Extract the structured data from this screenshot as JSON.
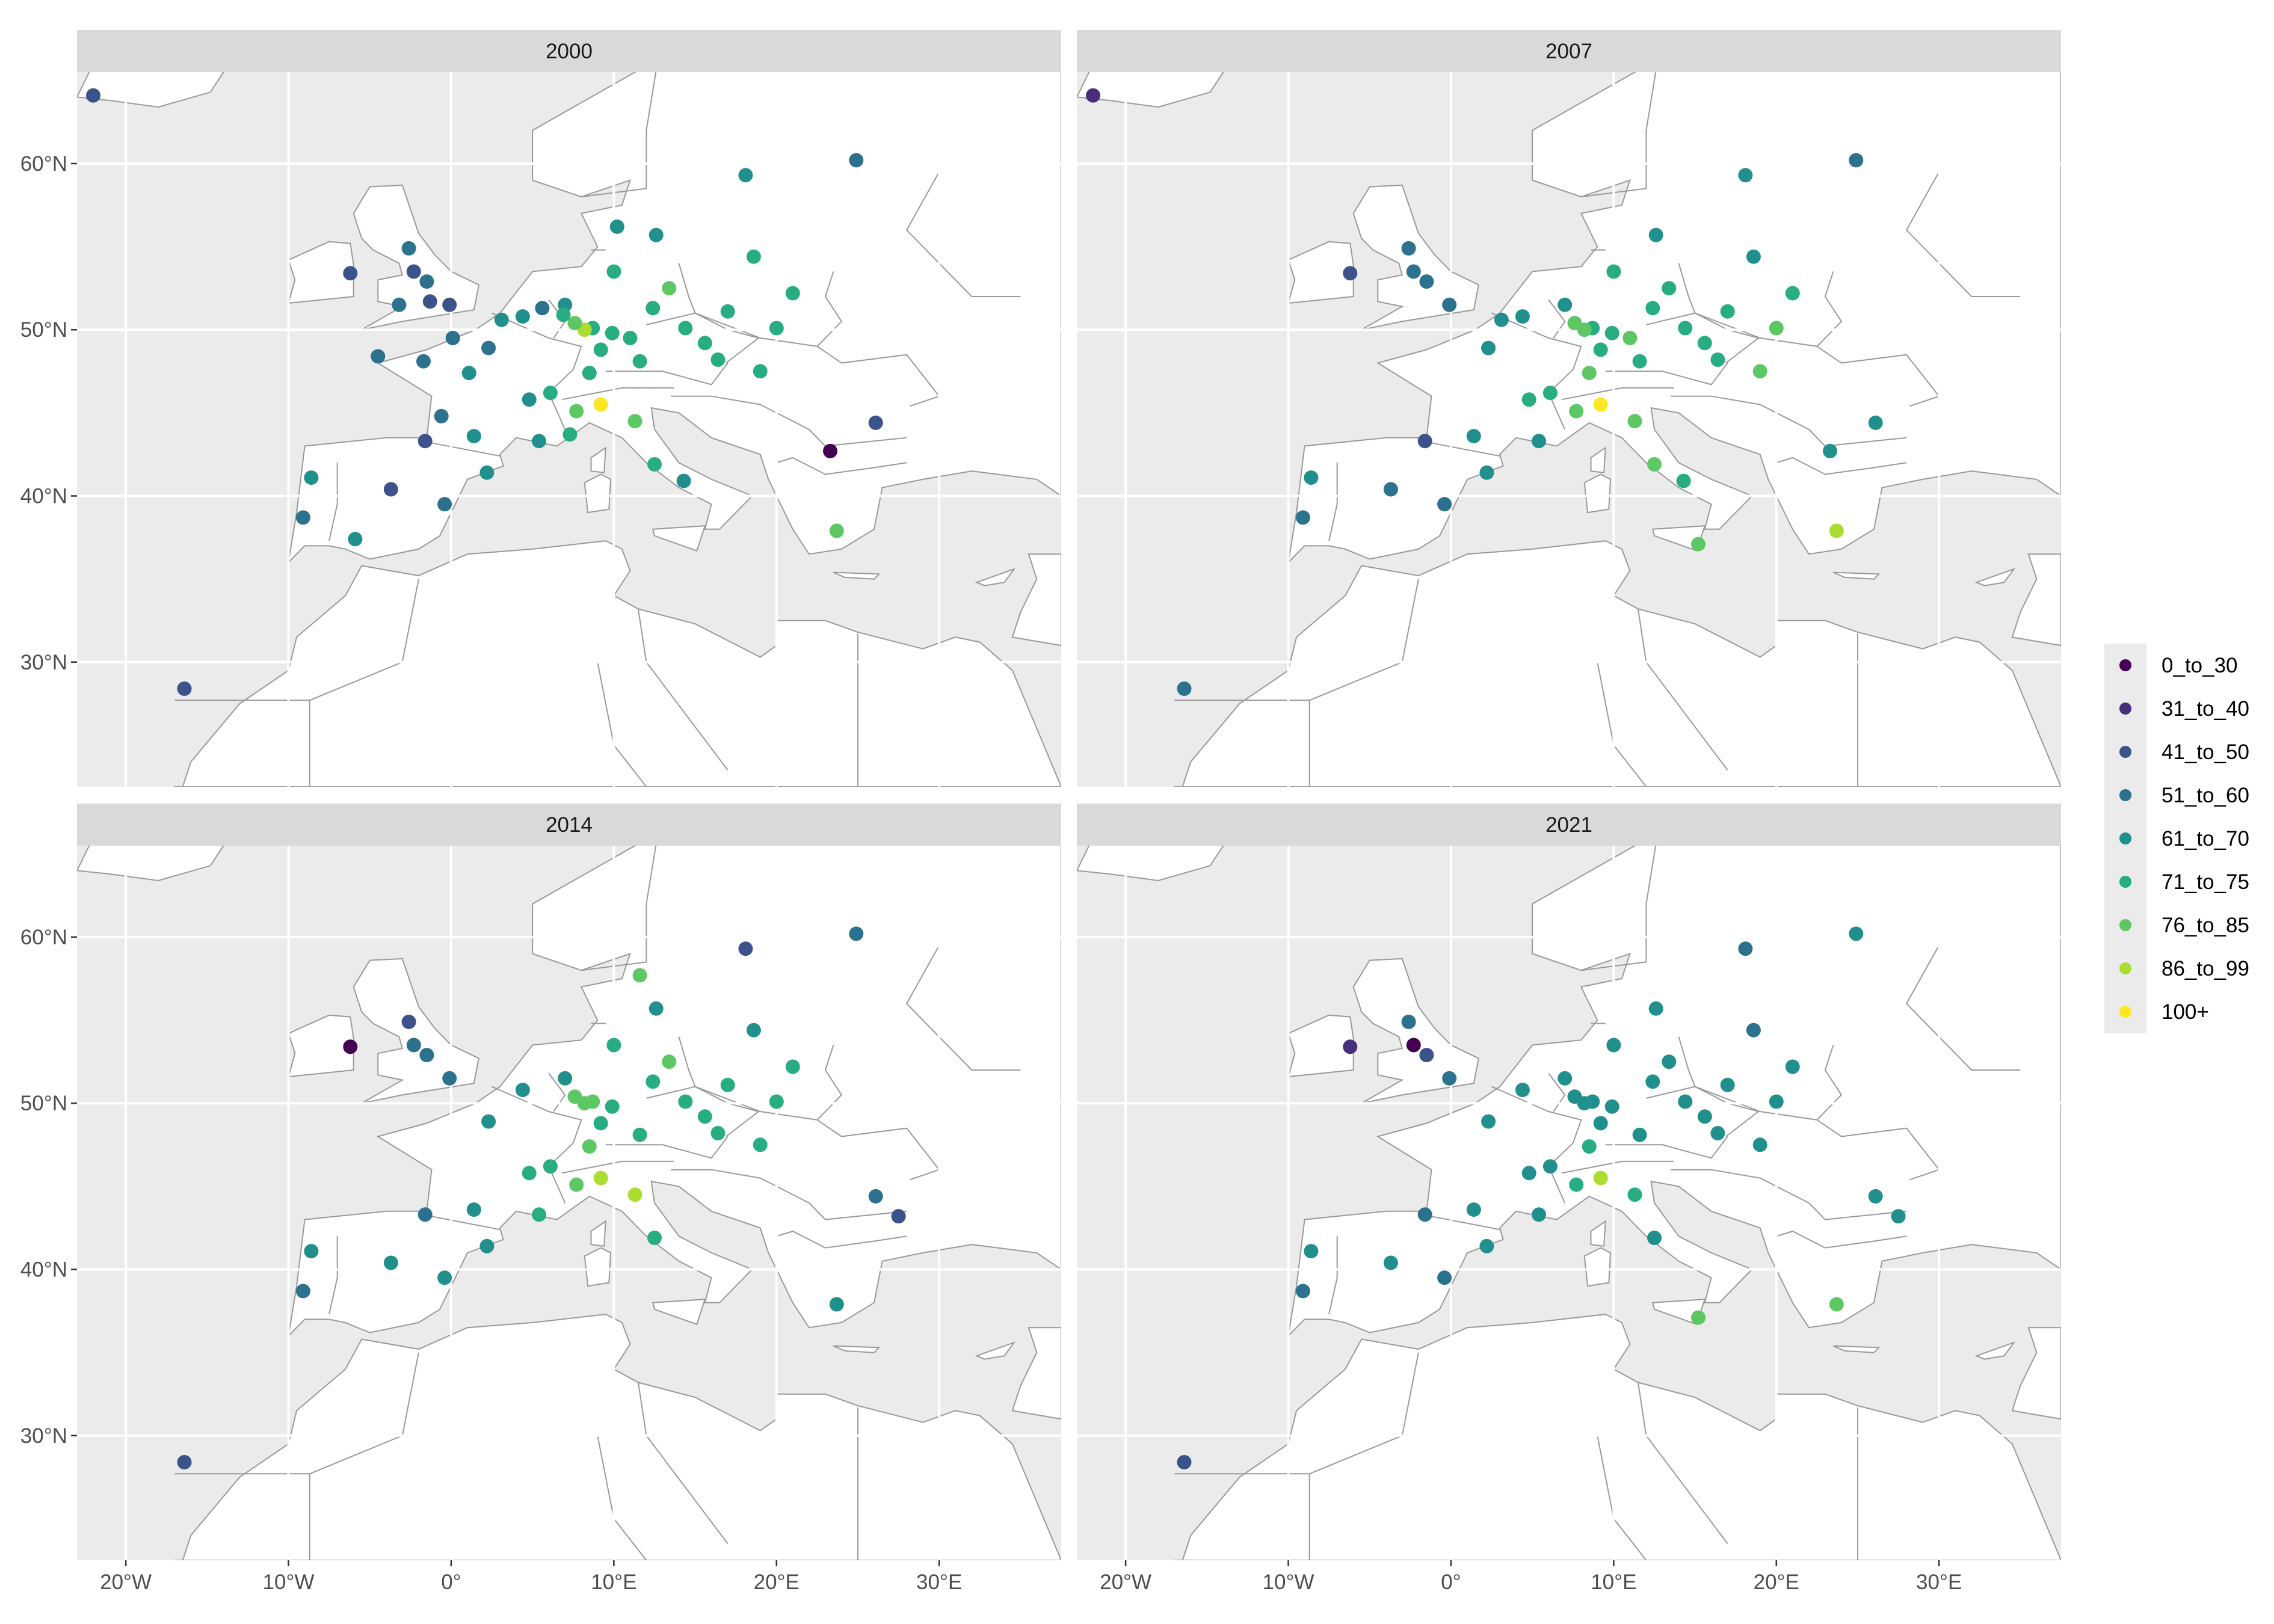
{
  "chart_data": {
    "type": "scatter",
    "xlim": [
      -23,
      37.5
    ],
    "ylim": [
      22.5,
      65.5
    ],
    "x_ticks": [
      {
        "value": -20,
        "label": "20°W"
      },
      {
        "value": -10,
        "label": "10°W"
      },
      {
        "value": 0,
        "label": "0°"
      },
      {
        "value": 10,
        "label": "10°E"
      },
      {
        "value": 20,
        "label": "20°E"
      },
      {
        "value": 30,
        "label": "30°E"
      }
    ],
    "y_ticks": [
      {
        "value": 30,
        "label": "30°N"
      },
      {
        "value": 40,
        "label": "40°N"
      },
      {
        "value": 50,
        "label": "50°N"
      },
      {
        "value": 60,
        "label": "60°N"
      }
    ],
    "grid": true,
    "legend_position": "right",
    "legend": [
      {
        "label": "0_to_30",
        "color": "#440154"
      },
      {
        "label": "31_to_40",
        "color": "#472D7B"
      },
      {
        "label": "41_to_50",
        "color": "#3B528B"
      },
      {
        "label": "51_to_60",
        "color": "#2C728E"
      },
      {
        "label": "61_to_70",
        "color": "#21908C"
      },
      {
        "label": "71_to_75",
        "color": "#27AD81"
      },
      {
        "label": "76_to_85",
        "color": "#5DC863"
      },
      {
        "label": "86_to_99",
        "color": "#AADC32"
      },
      {
        "label": "100+",
        "color": "#FDE725"
      }
    ],
    "land_color": "#ffffff",
    "sea_color": "#ebebeb",
    "panels": [
      {
        "title": "2000",
        "points": [
          [
            -22.0,
            64.1,
            2
          ],
          [
            -16.4,
            28.4,
            2
          ],
          [
            -6.2,
            53.4,
            2
          ],
          [
            -2.6,
            54.9,
            3
          ],
          [
            -2.3,
            53.5,
            2
          ],
          [
            -1.5,
            52.9,
            3
          ],
          [
            -3.2,
            51.5,
            3
          ],
          [
            -1.3,
            51.7,
            2
          ],
          [
            -0.1,
            51.5,
            2
          ],
          [
            2.3,
            48.9,
            3
          ],
          [
            4.4,
            50.8,
            4
          ],
          [
            5.6,
            51.3,
            3
          ],
          [
            7.0,
            51.5,
            4
          ],
          [
            8.7,
            50.1,
            5
          ],
          [
            9.2,
            48.8,
            5
          ],
          [
            11.6,
            48.1,
            5
          ],
          [
            13.4,
            52.5,
            6
          ],
          [
            10.0,
            53.5,
            5
          ],
          [
            12.4,
            51.3,
            5
          ],
          [
            14.4,
            50.1,
            5
          ],
          [
            16.4,
            48.2,
            5
          ],
          [
            19.0,
            47.5,
            5
          ],
          [
            -3.7,
            40.4,
            2
          ],
          [
            2.2,
            41.4,
            4
          ],
          [
            -0.4,
            39.5,
            3
          ],
          [
            -5.9,
            37.4,
            4
          ],
          [
            -9.1,
            38.7,
            3
          ],
          [
            -8.6,
            41.1,
            4
          ],
          [
            -1.6,
            43.3,
            2
          ],
          [
            1.4,
            43.6,
            4
          ],
          [
            5.4,
            43.3,
            4
          ],
          [
            7.3,
            43.7,
            5
          ],
          [
            7.7,
            45.1,
            6
          ],
          [
            9.2,
            45.5,
            8
          ],
          [
            11.3,
            44.5,
            6
          ],
          [
            12.5,
            41.9,
            5
          ],
          [
            14.3,
            40.9,
            4
          ],
          [
            23.7,
            37.9,
            6
          ],
          [
            26.1,
            44.4,
            2
          ],
          [
            23.3,
            42.7,
            0
          ],
          [
            21.0,
            52.2,
            5
          ],
          [
            18.6,
            54.4,
            5
          ],
          [
            24.9,
            60.2,
            3
          ],
          [
            18.1,
            59.3,
            4
          ],
          [
            12.6,
            55.7,
            4
          ],
          [
            10.2,
            56.2,
            4
          ],
          [
            8.5,
            47.4,
            5
          ],
          [
            6.1,
            46.2,
            5
          ],
          [
            4.8,
            45.8,
            4
          ],
          [
            3.1,
            50.6,
            4
          ],
          [
            0.1,
            49.5,
            3
          ],
          [
            -1.7,
            48.1,
            3
          ],
          [
            -4.5,
            48.4,
            3
          ],
          [
            -0.6,
            44.8,
            3
          ],
          [
            1.1,
            47.4,
            4
          ],
          [
            8.2,
            50.0,
            7
          ],
          [
            7.6,
            50.4,
            6
          ],
          [
            9.9,
            49.8,
            5
          ],
          [
            11.0,
            49.5,
            5
          ],
          [
            6.9,
            50.9,
            5
          ],
          [
            20.0,
            50.1,
            5
          ],
          [
            17.0,
            51.1,
            5
          ],
          [
            15.6,
            49.2,
            5
          ]
        ]
      },
      {
        "title": "2007",
        "points": [
          [
            -22.0,
            64.1,
            1
          ],
          [
            -16.4,
            28.4,
            3
          ],
          [
            -6.2,
            53.4,
            2
          ],
          [
            -2.6,
            54.9,
            3
          ],
          [
            -2.3,
            53.5,
            3
          ],
          [
            -1.5,
            52.9,
            3
          ],
          [
            -0.1,
            51.5,
            3
          ],
          [
            2.3,
            48.9,
            4
          ],
          [
            4.4,
            50.8,
            4
          ],
          [
            7.0,
            51.5,
            4
          ],
          [
            8.7,
            50.1,
            5
          ],
          [
            9.2,
            48.8,
            5
          ],
          [
            11.6,
            48.1,
            5
          ],
          [
            13.4,
            52.5,
            5
          ],
          [
            10.0,
            53.5,
            5
          ],
          [
            12.4,
            51.3,
            5
          ],
          [
            14.4,
            50.1,
            5
          ],
          [
            16.4,
            48.2,
            5
          ],
          [
            19.0,
            47.5,
            6
          ],
          [
            -3.7,
            40.4,
            3
          ],
          [
            2.2,
            41.4,
            4
          ],
          [
            -0.4,
            39.5,
            3
          ],
          [
            -9.1,
            38.7,
            3
          ],
          [
            -8.6,
            41.1,
            4
          ],
          [
            -1.6,
            43.3,
            2
          ],
          [
            1.4,
            43.6,
            4
          ],
          [
            5.4,
            43.3,
            4
          ],
          [
            7.7,
            45.1,
            6
          ],
          [
            9.2,
            45.5,
            8
          ],
          [
            11.3,
            44.5,
            6
          ],
          [
            12.5,
            41.9,
            6
          ],
          [
            14.3,
            40.9,
            5
          ],
          [
            23.7,
            37.9,
            7
          ],
          [
            26.1,
            44.4,
            4
          ],
          [
            23.3,
            42.7,
            4
          ],
          [
            21.0,
            52.2,
            5
          ],
          [
            18.6,
            54.4,
            4
          ],
          [
            24.9,
            60.2,
            3
          ],
          [
            18.1,
            59.3,
            4
          ],
          [
            12.6,
            55.7,
            4
          ],
          [
            8.5,
            47.4,
            6
          ],
          [
            6.1,
            46.2,
            5
          ],
          [
            4.8,
            45.8,
            5
          ],
          [
            3.1,
            50.6,
            4
          ],
          [
            8.2,
            50.0,
            6
          ],
          [
            7.6,
            50.4,
            6
          ],
          [
            9.9,
            49.8,
            5
          ],
          [
            11.0,
            49.5,
            6
          ],
          [
            20.0,
            50.1,
            6
          ],
          [
            17.0,
            51.1,
            5
          ],
          [
            15.6,
            49.2,
            5
          ],
          [
            15.2,
            37.1,
            6
          ]
        ]
      },
      {
        "title": "2014",
        "points": [
          [
            -16.4,
            28.4,
            2
          ],
          [
            -6.2,
            53.4,
            0
          ],
          [
            -2.6,
            54.9,
            2
          ],
          [
            -2.3,
            53.5,
            3
          ],
          [
            -1.5,
            52.9,
            3
          ],
          [
            -0.1,
            51.5,
            3
          ],
          [
            2.3,
            48.9,
            4
          ],
          [
            4.4,
            50.8,
            4
          ],
          [
            7.0,
            51.5,
            4
          ],
          [
            8.7,
            50.1,
            6
          ],
          [
            9.2,
            48.8,
            5
          ],
          [
            11.6,
            48.1,
            5
          ],
          [
            13.4,
            52.5,
            6
          ],
          [
            10.0,
            53.5,
            5
          ],
          [
            12.4,
            51.3,
            5
          ],
          [
            14.4,
            50.1,
            5
          ],
          [
            16.4,
            48.2,
            5
          ],
          [
            19.0,
            47.5,
            5
          ],
          [
            -3.7,
            40.4,
            4
          ],
          [
            2.2,
            41.4,
            4
          ],
          [
            -0.4,
            39.5,
            4
          ],
          [
            -9.1,
            38.7,
            3
          ],
          [
            -8.6,
            41.1,
            4
          ],
          [
            -1.6,
            43.3,
            3
          ],
          [
            1.4,
            43.6,
            4
          ],
          [
            5.4,
            43.3,
            5
          ],
          [
            7.7,
            45.1,
            6
          ],
          [
            9.2,
            45.5,
            7
          ],
          [
            11.3,
            44.5,
            7
          ],
          [
            12.5,
            41.9,
            5
          ],
          [
            23.7,
            37.9,
            4
          ],
          [
            26.1,
            44.4,
            3
          ],
          [
            27.5,
            43.2,
            2
          ],
          [
            21.0,
            52.2,
            5
          ],
          [
            18.6,
            54.4,
            4
          ],
          [
            24.9,
            60.2,
            3
          ],
          [
            18.1,
            59.3,
            2
          ],
          [
            12.6,
            55.7,
            4
          ],
          [
            11.6,
            57.7,
            6
          ],
          [
            8.5,
            47.4,
            6
          ],
          [
            6.1,
            46.2,
            5
          ],
          [
            4.8,
            45.8,
            5
          ],
          [
            8.2,
            50.0,
            6
          ],
          [
            7.6,
            50.4,
            6
          ],
          [
            9.9,
            49.8,
            5
          ],
          [
            20.0,
            50.1,
            5
          ],
          [
            17.0,
            51.1,
            5
          ],
          [
            15.6,
            49.2,
            5
          ]
        ]
      },
      {
        "title": "2021",
        "points": [
          [
            -16.4,
            28.4,
            2
          ],
          [
            -6.2,
            53.4,
            1
          ],
          [
            -2.6,
            54.9,
            3
          ],
          [
            -2.3,
            53.5,
            0
          ],
          [
            -1.5,
            52.9,
            2
          ],
          [
            -0.1,
            51.5,
            3
          ],
          [
            2.3,
            48.9,
            4
          ],
          [
            4.4,
            50.8,
            4
          ],
          [
            7.0,
            51.5,
            4
          ],
          [
            8.7,
            50.1,
            4
          ],
          [
            9.2,
            48.8,
            4
          ],
          [
            11.6,
            48.1,
            4
          ],
          [
            13.4,
            52.5,
            4
          ],
          [
            10.0,
            53.5,
            4
          ],
          [
            12.4,
            51.3,
            4
          ],
          [
            14.4,
            50.1,
            4
          ],
          [
            16.4,
            48.2,
            4
          ],
          [
            19.0,
            47.5,
            4
          ],
          [
            -3.7,
            40.4,
            4
          ],
          [
            2.2,
            41.4,
            4
          ],
          [
            -0.4,
            39.5,
            3
          ],
          [
            -9.1,
            38.7,
            3
          ],
          [
            -8.6,
            41.1,
            4
          ],
          [
            -1.6,
            43.3,
            3
          ],
          [
            1.4,
            43.6,
            4
          ],
          [
            5.4,
            43.3,
            4
          ],
          [
            7.7,
            45.1,
            5
          ],
          [
            9.2,
            45.5,
            7
          ],
          [
            11.3,
            44.5,
            5
          ],
          [
            12.5,
            41.9,
            4
          ],
          [
            23.7,
            37.9,
            6
          ],
          [
            26.1,
            44.4,
            4
          ],
          [
            27.5,
            43.2,
            4
          ],
          [
            21.0,
            52.2,
            4
          ],
          [
            18.6,
            54.4,
            3
          ],
          [
            24.9,
            60.2,
            4
          ],
          [
            18.1,
            59.3,
            3
          ],
          [
            12.6,
            55.7,
            4
          ],
          [
            8.5,
            47.4,
            5
          ],
          [
            6.1,
            46.2,
            4
          ],
          [
            4.8,
            45.8,
            4
          ],
          [
            8.2,
            50.0,
            4
          ],
          [
            7.6,
            50.4,
            4
          ],
          [
            9.9,
            49.8,
            4
          ],
          [
            20.0,
            50.1,
            4
          ],
          [
            17.0,
            51.1,
            4
          ],
          [
            15.6,
            49.2,
            4
          ],
          [
            15.2,
            37.1,
            6
          ]
        ]
      }
    ]
  }
}
